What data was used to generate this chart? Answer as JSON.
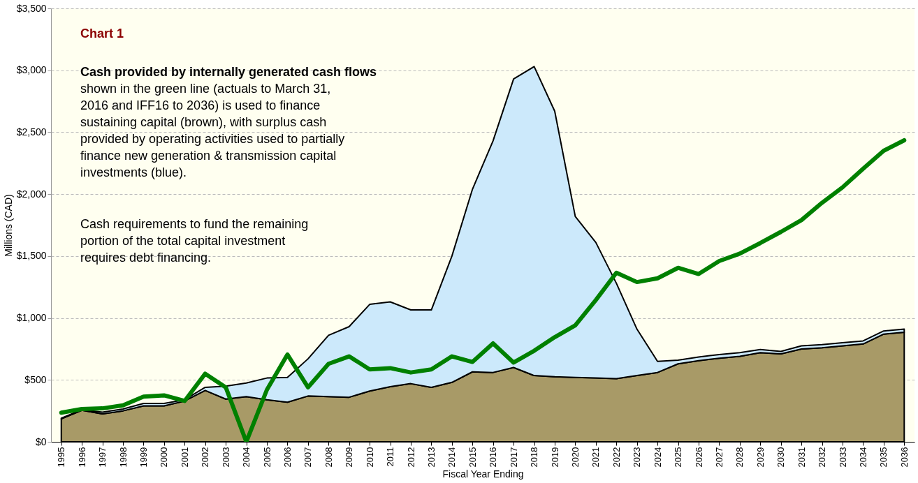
{
  "chart_data": {
    "type": "area",
    "stacked": true,
    "xlabel": "Fiscal Year Ending",
    "ylabel": "Millions (CAD)",
    "categories": [
      "1995",
      "1996",
      "1997",
      "1998",
      "1999",
      "2000",
      "2001",
      "2002",
      "2003",
      "2004",
      "2005",
      "2006",
      "2007",
      "2008",
      "2009",
      "2010",
      "2011",
      "2012",
      "2013",
      "2014",
      "2015",
      "2016",
      "2017",
      "2018",
      "2019",
      "2020",
      "2021",
      "2022",
      "2023",
      "2024",
      "2025",
      "2026",
      "2027",
      "2028",
      "2029",
      "2030",
      "2031",
      "2032",
      "2033",
      "2034",
      "2035",
      "2036"
    ],
    "series": [
      {
        "color": "#a89a67",
        "values": [
          185,
          255,
          225,
          250,
          290,
          290,
          330,
          415,
          345,
          365,
          340,
          320,
          370,
          365,
          360,
          410,
          445,
          470,
          440,
          480,
          565,
          560,
          600,
          535,
          525,
          520,
          515,
          510,
          535,
          560,
          630,
          655,
          675,
          690,
          720,
          710,
          750,
          760,
          775,
          790,
          870,
          885
        ]
      },
      {
        "color": "#cce9fb",
        "values": [
          5,
          5,
          15,
          15,
          20,
          20,
          10,
          25,
          105,
          110,
          175,
          200,
          300,
          495,
          570,
          700,
          685,
          595,
          625,
          1020,
          1475,
          1870,
          2330,
          2495,
          2145,
          1300,
          1095,
          770,
          375,
          90,
          30,
          30,
          30,
          30,
          25,
          20,
          25,
          25,
          25,
          25,
          25,
          25
        ]
      },
      {
        "type": "line",
        "color": "#008000",
        "values": [
          235,
          265,
          270,
          295,
          365,
          375,
          330,
          550,
          440,
          0,
          420,
          705,
          440,
          630,
          690,
          585,
          595,
          560,
          585,
          690,
          645,
          795,
          640,
          735,
          845,
          940,
          1145,
          1365,
          1290,
          1320,
          1405,
          1355,
          1460,
          1520,
          1605,
          1695,
          1790,
          1930,
          2055,
          2205,
          2350,
          2435
        ]
      }
    ],
    "ylim": [
      0,
      3500
    ],
    "yticks": [
      {
        "value": 0,
        "label": "$0"
      },
      {
        "value": 500,
        "label": "$500"
      },
      {
        "value": 1000,
        "label": "$1,000"
      },
      {
        "value": 1500,
        "label": "$1,500"
      },
      {
        "value": 2000,
        "label": "$2,000"
      },
      {
        "value": 2500,
        "label": "$2,500"
      },
      {
        "value": 3000,
        "label": "$3,000"
      },
      {
        "value": 3500,
        "label": "$3,500"
      }
    ],
    "grid": "y",
    "legend": false,
    "annotations": [
      "Chart 1",
      "Cash provided by internally generated cash flows",
      "shown in the green line (actuals to March 31,",
      "2016 and IFF16 to 2036) is used to finance",
      "sustaining capital (brown), with surplus cash",
      "provided by operating activities used to partially",
      "finance new generation & transmission capital",
      "investments (blue).",
      "Cash requirements to fund the remaining",
      "portion of the total capital investment",
      "requires debt financing."
    ]
  }
}
